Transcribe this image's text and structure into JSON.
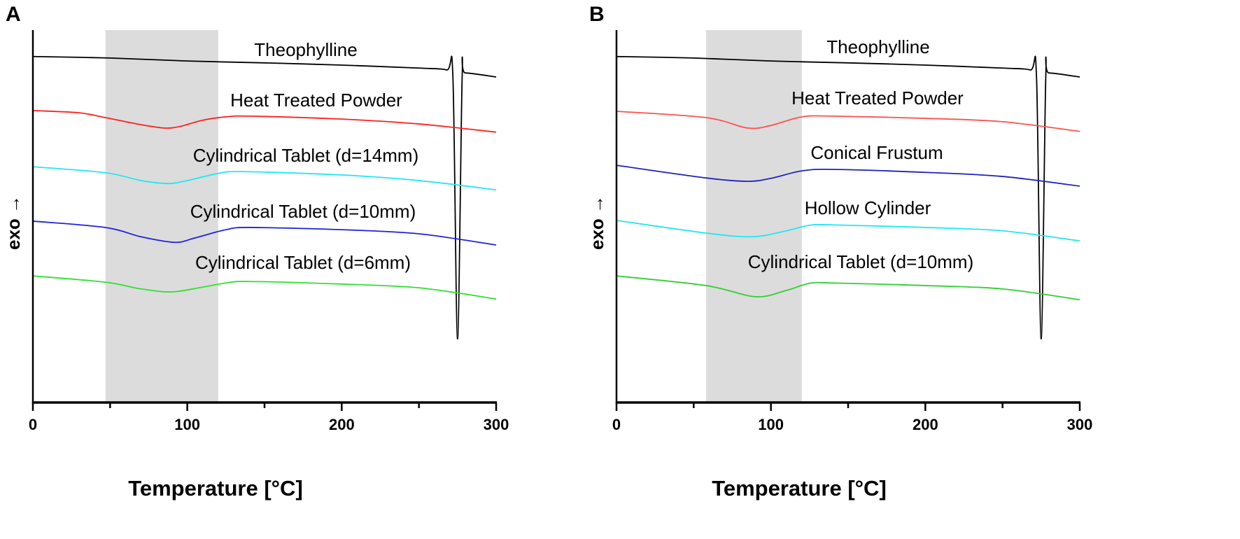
{
  "chart_data": [
    {
      "type": "line",
      "panel": "A",
      "xlabel": "Temperature [°C]",
      "ylabel": "exo →",
      "xlim": [
        0,
        300
      ],
      "ylim": [
        0,
        100
      ],
      "xticks": [
        "0",
        "100",
        "200",
        "300"
      ],
      "shaded_region": [
        47,
        120
      ],
      "series": [
        {
          "name": "Theophylline",
          "color": "#000000",
          "x": [
            0,
            50,
            100,
            150,
            200,
            250,
            268,
            272,
            275,
            278,
            280,
            300
          ],
          "y": [
            92.9,
            92.5,
            91.7,
            91.2,
            90.6,
            89.8,
            89.3,
            87.4,
            17.1,
            87.4,
            88.5,
            87.4
          ]
        },
        {
          "name": "Heat Treated Powder",
          "color": "#ff2020",
          "x": [
            0,
            30,
            47,
            70,
            85,
            95,
            110,
            125,
            140,
            200,
            250,
            300
          ],
          "y": [
            78.4,
            77.8,
            76.5,
            74.6,
            73.7,
            74.1,
            75.8,
            76.7,
            76.9,
            76.1,
            74.8,
            72.6
          ]
        },
        {
          "name": "Cylindrical Tablet (d=14mm)",
          "color": "#22e8f0",
          "x": [
            0,
            47,
            70,
            88,
            100,
            120,
            135,
            200,
            250,
            300
          ],
          "y": [
            63.3,
            61.7,
            59.6,
            58.8,
            59.6,
            61.5,
            62.0,
            61.1,
            59.6,
            57.1
          ]
        },
        {
          "name": "Cylindrical Tablet (d=10mm)",
          "color": "#2020e0",
          "x": [
            0,
            47,
            70,
            92,
            105,
            125,
            140,
            200,
            250,
            300
          ],
          "y": [
            48.7,
            47.0,
            44.5,
            43.0,
            44.2,
            46.4,
            47.0,
            46.4,
            45.3,
            42.3
          ]
        },
        {
          "name": "Cylindrical Tablet (d=6mm)",
          "color": "#30e030",
          "x": [
            0,
            47,
            70,
            90,
            110,
            125,
            140,
            200,
            250,
            300
          ],
          "y": [
            34.0,
            32.3,
            30.5,
            29.7,
            31.0,
            32.1,
            32.5,
            31.8,
            30.8,
            27.8
          ]
        }
      ]
    },
    {
      "type": "line",
      "panel": "B",
      "xlabel": "Temperature [°C]",
      "ylabel": "exo →",
      "xlim": [
        0,
        300
      ],
      "ylim": [
        0,
        100
      ],
      "xticks": [
        "0",
        "100",
        "200",
        "300"
      ],
      "shaded_region": [
        58,
        120
      ],
      "series": [
        {
          "name": "Theophylline",
          "color": "#000000",
          "x": [
            0,
            50,
            100,
            150,
            200,
            250,
            268,
            272,
            275,
            278,
            280,
            300
          ],
          "y": [
            92.9,
            92.5,
            91.7,
            91.2,
            90.6,
            89.8,
            89.3,
            87.4,
            17.1,
            87.4,
            88.5,
            87.4
          ]
        },
        {
          "name": "Heat Treated Powder",
          "color": "#ff5050",
          "x": [
            0,
            58,
            85,
            100,
            120,
            140,
            200,
            250,
            300
          ],
          "y": [
            78.2,
            76.5,
            73.7,
            74.4,
            76.7,
            76.9,
            76.3,
            75.4,
            72.8
          ]
        },
        {
          "name": "Conical Frustum",
          "color": "#2020c0",
          "x": [
            0,
            58,
            85,
            100,
            120,
            140,
            200,
            250,
            300
          ],
          "y": [
            63.7,
            60.3,
            59.4,
            60.2,
            62.2,
            62.6,
            61.8,
            60.7,
            58.1
          ]
        },
        {
          "name": "Hollow Cylinder",
          "color": "#22e8f0",
          "x": [
            0,
            58,
            88,
            110,
            125,
            140,
            200,
            250,
            300
          ],
          "y": [
            48.9,
            45.5,
            44.5,
            46.1,
            47.6,
            47.7,
            47.0,
            46.1,
            43.4
          ]
        },
        {
          "name": "Cylindrical Tablet (d=10mm)",
          "color": "#30d030",
          "x": [
            0,
            58,
            90,
            110,
            125,
            140,
            200,
            250,
            300
          ],
          "y": [
            34.0,
            31.4,
            28.4,
            30.1,
            32.0,
            32.1,
            31.4,
            30.5,
            27.6
          ]
        }
      ]
    }
  ]
}
